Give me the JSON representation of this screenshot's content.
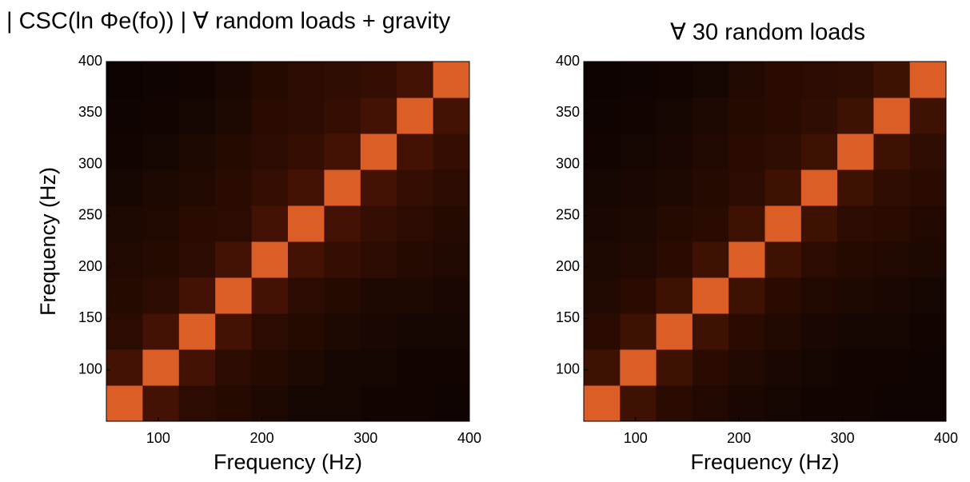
{
  "chart_data": [
    {
      "type": "heatmap",
      "title": "| CSC(ln Φe(fo)) | ∀ random loads + gravity",
      "x_label": "Frequency (Hz)",
      "y_label": "Frequency (Hz)",
      "xlim": [
        50,
        400
      ],
      "ylim": [
        50,
        400
      ],
      "xticks": [
        100,
        200,
        300,
        400
      ],
      "yticks": [
        100,
        150,
        200,
        250,
        300,
        350,
        400
      ],
      "colormap": [
        "#000000",
        "#4a1404",
        "#ff7030"
      ],
      "z": [
        [
          0.9,
          0.45,
          0.3,
          0.25,
          0.2,
          0.15,
          0.15,
          0.12,
          0.12,
          0.1
        ],
        [
          0.45,
          0.9,
          0.45,
          0.3,
          0.25,
          0.2,
          0.15,
          0.15,
          0.12,
          0.12
        ],
        [
          0.3,
          0.45,
          0.9,
          0.45,
          0.3,
          0.25,
          0.2,
          0.18,
          0.15,
          0.15
        ],
        [
          0.25,
          0.3,
          0.45,
          0.9,
          0.45,
          0.3,
          0.25,
          0.2,
          0.2,
          0.18
        ],
        [
          0.22,
          0.25,
          0.3,
          0.45,
          0.9,
          0.45,
          0.35,
          0.3,
          0.25,
          0.22
        ],
        [
          0.2,
          0.22,
          0.28,
          0.3,
          0.45,
          0.9,
          0.45,
          0.35,
          0.3,
          0.25
        ],
        [
          0.15,
          0.2,
          0.22,
          0.28,
          0.35,
          0.45,
          0.9,
          0.45,
          0.35,
          0.3
        ],
        [
          0.12,
          0.15,
          0.2,
          0.25,
          0.3,
          0.35,
          0.45,
          0.9,
          0.45,
          0.35
        ],
        [
          0.1,
          0.12,
          0.15,
          0.2,
          0.28,
          0.3,
          0.35,
          0.45,
          0.9,
          0.45
        ],
        [
          0.08,
          0.1,
          0.12,
          0.18,
          0.25,
          0.3,
          0.32,
          0.35,
          0.45,
          0.9
        ]
      ]
    },
    {
      "type": "heatmap",
      "title": "∀ 30 random loads",
      "x_label": "Frequency (Hz)",
      "xlim": [
        50,
        400
      ],
      "ylim": [
        50,
        400
      ],
      "xticks": [
        100,
        200,
        300,
        400
      ],
      "yticks": [
        100,
        150,
        200,
        250,
        300,
        350,
        400
      ],
      "colormap": [
        "#000000",
        "#4a1404",
        "#ff7030"
      ],
      "z": [
        [
          0.9,
          0.42,
          0.28,
          0.22,
          0.18,
          0.15,
          0.12,
          0.12,
          0.1,
          0.1
        ],
        [
          0.42,
          0.9,
          0.42,
          0.28,
          0.22,
          0.18,
          0.15,
          0.12,
          0.12,
          0.1
        ],
        [
          0.28,
          0.42,
          0.9,
          0.42,
          0.28,
          0.22,
          0.18,
          0.15,
          0.15,
          0.12
        ],
        [
          0.22,
          0.28,
          0.42,
          0.9,
          0.42,
          0.28,
          0.22,
          0.2,
          0.18,
          0.15
        ],
        [
          0.2,
          0.22,
          0.28,
          0.42,
          0.9,
          0.42,
          0.3,
          0.25,
          0.22,
          0.2
        ],
        [
          0.18,
          0.2,
          0.25,
          0.28,
          0.42,
          0.9,
          0.42,
          0.3,
          0.28,
          0.22
        ],
        [
          0.15,
          0.18,
          0.2,
          0.25,
          0.3,
          0.42,
          0.9,
          0.42,
          0.32,
          0.28
        ],
        [
          0.12,
          0.15,
          0.18,
          0.22,
          0.28,
          0.32,
          0.42,
          0.9,
          0.42,
          0.32
        ],
        [
          0.1,
          0.12,
          0.15,
          0.2,
          0.25,
          0.28,
          0.32,
          0.42,
          0.9,
          0.42
        ],
        [
          0.08,
          0.1,
          0.12,
          0.15,
          0.22,
          0.28,
          0.3,
          0.32,
          0.42,
          0.9
        ]
      ]
    }
  ]
}
